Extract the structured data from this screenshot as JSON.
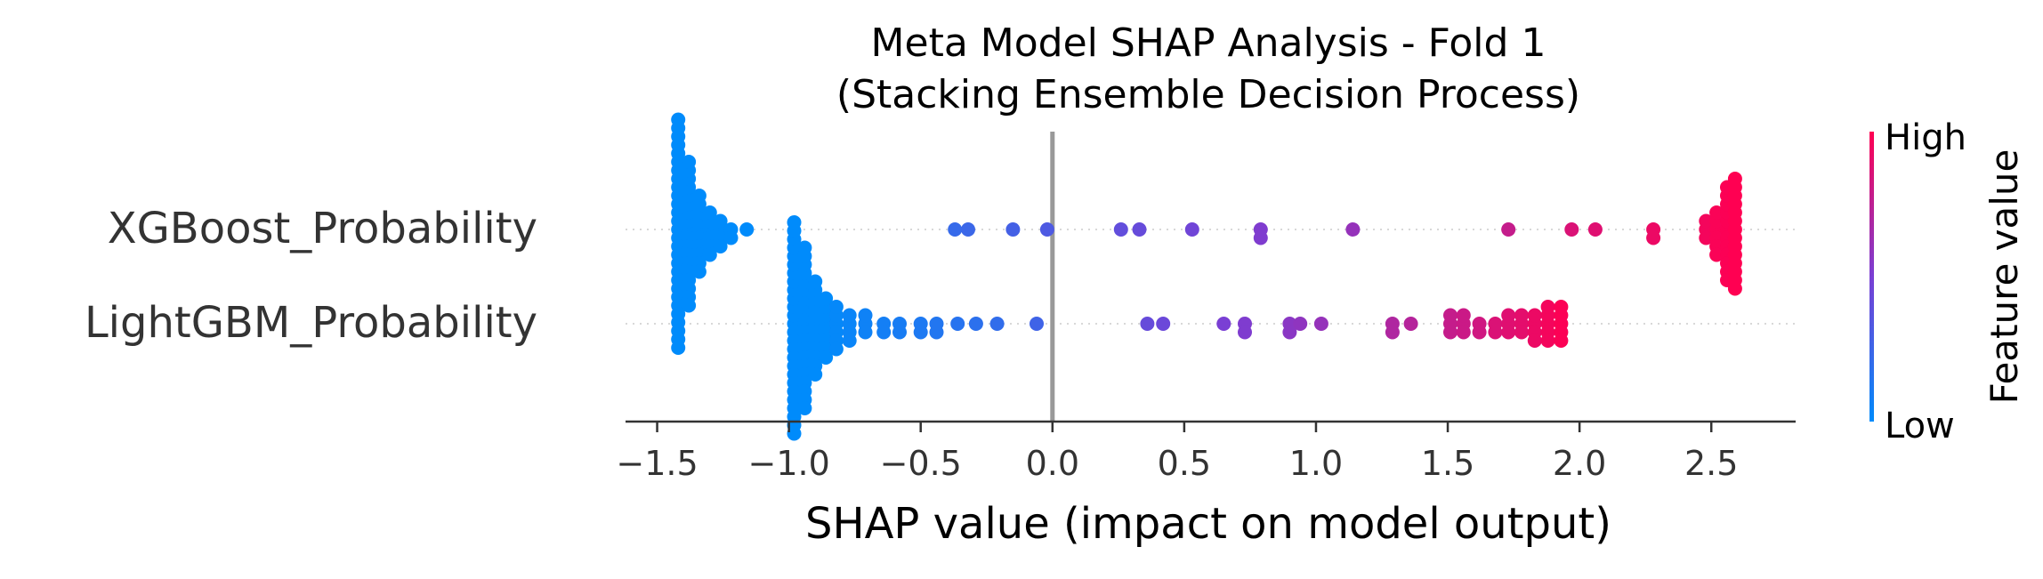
{
  "chart_data": {
    "type": "scatter",
    "subtype": "shap-beeswarm",
    "title": "Meta Model SHAP Analysis - Fold 1",
    "subtitle": "(Stacking Ensemble Decision Process)",
    "xlabel": "SHAP value (impact on model output)",
    "xlim": [
      -1.62,
      2.82
    ],
    "xticks": [
      -1.5,
      -1.0,
      -0.5,
      0.0,
      0.5,
      1.0,
      1.5,
      2.0,
      2.5
    ],
    "xtick_labels": [
      "−1.5",
      "−1.0",
      "−0.5",
      "0.0",
      "0.5",
      "1.0",
      "1.5",
      "2.0",
      "2.5"
    ],
    "grid": false,
    "colorbar": {
      "label": "Feature value",
      "high_label": "High",
      "low_label": "Low",
      "low_color": "#008bfb",
      "high_color": "#ff0052"
    },
    "zero_line_color": "#999999",
    "features": [
      {
        "name": "XGBoost_Probability",
        "points": [
          {
            "x": -1.42,
            "v": 0.0,
            "n": 28
          },
          {
            "x": -1.38,
            "v": 0.0,
            "n": 18
          },
          {
            "x": -1.34,
            "v": 0.0,
            "n": 10
          },
          {
            "x": -1.3,
            "v": 0.0,
            "n": 6
          },
          {
            "x": -1.26,
            "v": 0.0,
            "n": 4
          },
          {
            "x": -1.22,
            "v": 0.0,
            "n": 2
          },
          {
            "x": -1.16,
            "v": 0.0,
            "n": 1
          },
          {
            "x": -0.37,
            "v": 0.22,
            "n": 1
          },
          {
            "x": -0.32,
            "v": 0.24,
            "n": 1
          },
          {
            "x": -0.15,
            "v": 0.28,
            "n": 1
          },
          {
            "x": -0.02,
            "v": 0.32,
            "n": 1
          },
          {
            "x": 0.26,
            "v": 0.4,
            "n": 1
          },
          {
            "x": 0.33,
            "v": 0.42,
            "n": 1
          },
          {
            "x": 0.53,
            "v": 0.46,
            "n": 1
          },
          {
            "x": 0.79,
            "v": 0.52,
            "n": 2
          },
          {
            "x": 1.14,
            "v": 0.6,
            "n": 1
          },
          {
            "x": 1.73,
            "v": 0.78,
            "n": 1
          },
          {
            "x": 1.97,
            "v": 0.86,
            "n": 1
          },
          {
            "x": 2.06,
            "v": 0.88,
            "n": 1
          },
          {
            "x": 2.28,
            "v": 0.93,
            "n": 2
          },
          {
            "x": 2.48,
            "v": 0.96,
            "n": 3
          },
          {
            "x": 2.52,
            "v": 0.98,
            "n": 6
          },
          {
            "x": 2.56,
            "v": 0.99,
            "n": 12
          },
          {
            "x": 2.59,
            "v": 1.0,
            "n": 14
          }
        ]
      },
      {
        "name": "LightGBM_Probability",
        "points": [
          {
            "x": -0.98,
            "v": 0.0,
            "n": 26
          },
          {
            "x": -0.94,
            "v": 0.0,
            "n": 20
          },
          {
            "x": -0.9,
            "v": 0.0,
            "n": 12
          },
          {
            "x": -0.86,
            "v": 0.0,
            "n": 8
          },
          {
            "x": -0.82,
            "v": 0.02,
            "n": 6
          },
          {
            "x": -0.77,
            "v": 0.04,
            "n": 4
          },
          {
            "x": -0.71,
            "v": 0.06,
            "n": 3
          },
          {
            "x": -0.64,
            "v": 0.08,
            "n": 2
          },
          {
            "x": -0.58,
            "v": 0.1,
            "n": 2
          },
          {
            "x": -0.5,
            "v": 0.12,
            "n": 2
          },
          {
            "x": -0.44,
            "v": 0.14,
            "n": 2
          },
          {
            "x": -0.36,
            "v": 0.16,
            "n": 1
          },
          {
            "x": -0.29,
            "v": 0.18,
            "n": 1
          },
          {
            "x": -0.21,
            "v": 0.2,
            "n": 1
          },
          {
            "x": -0.06,
            "v": 0.26,
            "n": 1
          },
          {
            "x": 0.36,
            "v": 0.42,
            "n": 1
          },
          {
            "x": 0.42,
            "v": 0.44,
            "n": 1
          },
          {
            "x": 0.65,
            "v": 0.5,
            "n": 1
          },
          {
            "x": 0.73,
            "v": 0.52,
            "n": 2
          },
          {
            "x": 0.9,
            "v": 0.56,
            "n": 2
          },
          {
            "x": 0.94,
            "v": 0.58,
            "n": 1
          },
          {
            "x": 1.02,
            "v": 0.6,
            "n": 1
          },
          {
            "x": 1.29,
            "v": 0.7,
            "n": 2
          },
          {
            "x": 1.36,
            "v": 0.72,
            "n": 1
          },
          {
            "x": 1.51,
            "v": 0.78,
            "n": 3
          },
          {
            "x": 1.56,
            "v": 0.8,
            "n": 3
          },
          {
            "x": 1.62,
            "v": 0.82,
            "n": 2
          },
          {
            "x": 1.68,
            "v": 0.86,
            "n": 2
          },
          {
            "x": 1.73,
            "v": 0.88,
            "n": 3
          },
          {
            "x": 1.78,
            "v": 0.9,
            "n": 3
          },
          {
            "x": 1.83,
            "v": 0.93,
            "n": 4
          },
          {
            "x": 1.88,
            "v": 0.96,
            "n": 5
          },
          {
            "x": 1.93,
            "v": 0.99,
            "n": 5
          }
        ]
      }
    ]
  }
}
